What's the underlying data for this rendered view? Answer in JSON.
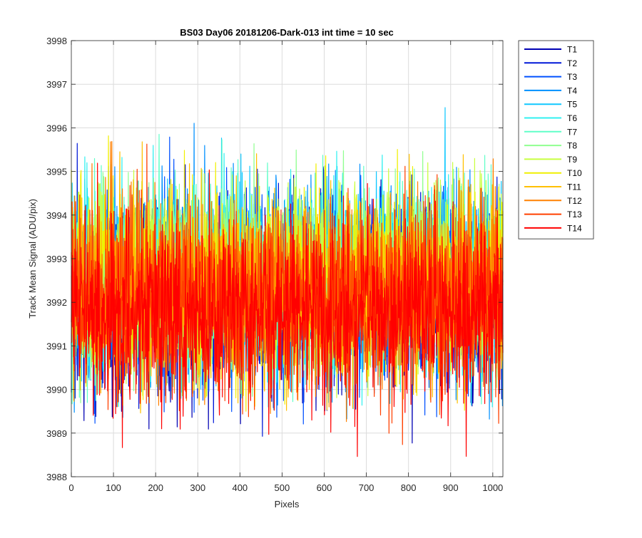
{
  "chart_data": {
    "type": "line",
    "title": "BS03 Day06 20181206-Dark-013 int time = 10 sec",
    "xlabel": "Pixels",
    "ylabel": "Track Mean Signal (ADU/pix)",
    "xlim": [
      0,
      1024
    ],
    "ylim": [
      3988,
      3998
    ],
    "xticks": [
      "0",
      "100",
      "200",
      "300",
      "400",
      "500",
      "600",
      "700",
      "800",
      "900",
      "1000"
    ],
    "yticks": [
      "3988",
      "3989",
      "3990",
      "3991",
      "3992",
      "3993",
      "3994",
      "3995",
      "3996",
      "3997",
      "3998"
    ],
    "grid": true,
    "legend_position": "outside-top-right",
    "n_points": 1024,
    "series": [
      {
        "name": "T1",
        "color": "#0000b4",
        "mean": 3992.1,
        "spread": 1.05,
        "low": 3988.5,
        "high": 3997.0
      },
      {
        "name": "T2",
        "color": "#0018d8",
        "mean": 3992.2,
        "spread": 1.05,
        "low": 3988.9,
        "high": 3996.6
      },
      {
        "name": "T3",
        "color": "#0050ff",
        "mean": 3992.3,
        "spread": 1.05,
        "low": 3989.2,
        "high": 3996.5
      },
      {
        "name": "T4",
        "color": "#0090ff",
        "mean": 3992.4,
        "spread": 1.05,
        "low": 3989.3,
        "high": 3997.0
      },
      {
        "name": "T5",
        "color": "#10c8ff",
        "mean": 3992.5,
        "spread": 1.05,
        "low": 3989.5,
        "high": 3997.2
      },
      {
        "name": "T6",
        "color": "#30f0f0",
        "mean": 3992.5,
        "spread": 1.05,
        "low": 3989.6,
        "high": 3996.3
      },
      {
        "name": "T7",
        "color": "#60ffc8",
        "mean": 3992.5,
        "spread": 1.05,
        "low": 3989.6,
        "high": 3996.2
      },
      {
        "name": "T8",
        "color": "#90ff90",
        "mean": 3992.5,
        "spread": 1.05,
        "low": 3989.6,
        "high": 3996.0
      },
      {
        "name": "T9",
        "color": "#c8ff40",
        "mean": 3992.5,
        "spread": 1.05,
        "low": 3989.6,
        "high": 3996.5
      },
      {
        "name": "T10",
        "color": "#f0f000",
        "mean": 3992.4,
        "spread": 1.05,
        "low": 3989.5,
        "high": 3996.9
      },
      {
        "name": "T11",
        "color": "#ffc000",
        "mean": 3992.3,
        "spread": 1.05,
        "low": 3989.4,
        "high": 3996.7
      },
      {
        "name": "T12",
        "color": "#ff8000",
        "mean": 3992.2,
        "spread": 1.05,
        "low": 3989.0,
        "high": 3996.1
      },
      {
        "name": "T13",
        "color": "#ff4000",
        "mean": 3992.1,
        "spread": 1.05,
        "low": 3988.7,
        "high": 3995.7
      },
      {
        "name": "T14",
        "color": "#ff0000",
        "mean": 3991.8,
        "spread": 1.05,
        "low": 3988.0,
        "high": 3995.2
      }
    ]
  }
}
